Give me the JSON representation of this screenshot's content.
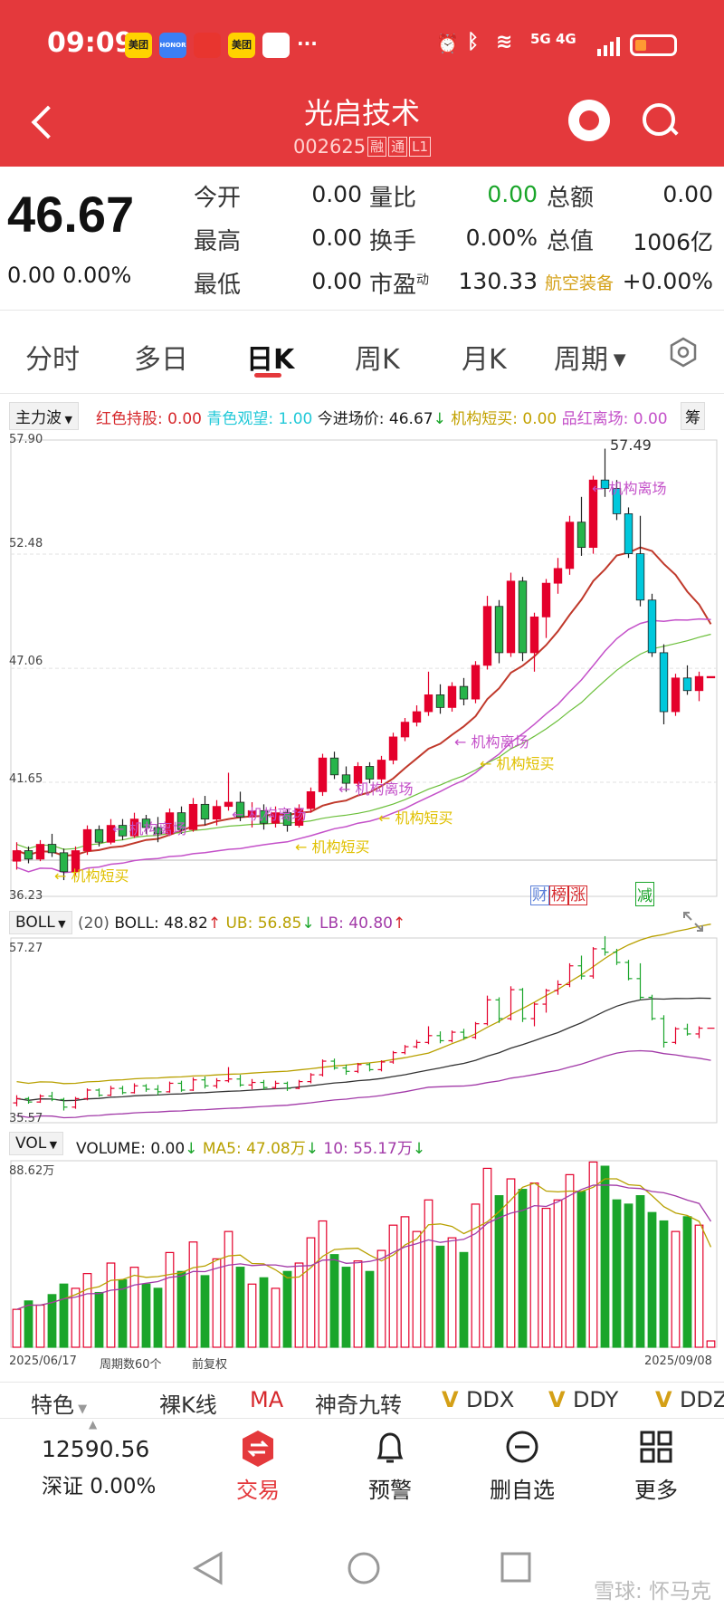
{
  "status_bar": {
    "time": "09:09",
    "apps": [
      "美团",
      "HONOR",
      "",
      "美团",
      ""
    ],
    "network": "5G 4G",
    "icons": [
      "alarm-icon",
      "bluetooth-icon",
      "wifi-icon",
      "signal-icon",
      "battery-icon"
    ]
  },
  "header": {
    "stock_name": "光启技术",
    "stock_code": "002625",
    "tags": [
      "融",
      "通",
      "L1"
    ]
  },
  "quote": {
    "price": "46.67",
    "change": "0.00",
    "change_pct": "0.00%",
    "rows": [
      {
        "l1": "今开",
        "v1": "0.00",
        "l2": "量比",
        "v2": "0.00",
        "l3": "总额",
        "v3": "0.00"
      },
      {
        "l1": "最高",
        "v1": "0.00",
        "l2": "换手",
        "v2": "0.00%",
        "l3": "总值",
        "v3": "1006亿"
      },
      {
        "l1": "最低",
        "v1": "0.00",
        "l2": "市盈",
        "l2sup": "动",
        "v2": "130.33",
        "l3": "航空装备",
        "v3": "+0.00%"
      }
    ]
  },
  "tabs": [
    "分时",
    "多日",
    "日K",
    "周K",
    "月K",
    "周期"
  ],
  "active_tab": "日K",
  "main_indicator": {
    "selector": "主力波",
    "items": [
      {
        "text": "红色持股: 0.00",
        "color": "#d6282c"
      },
      {
        "text": "青色观望: 1.00",
        "color": "#23c9d8"
      },
      {
        "text": "今进场价: 46.67",
        "color": "#1a1a1a"
      },
      {
        "text": "机构短买: 0.00",
        "color": "#c2a100"
      },
      {
        "text": "品红离场: 0.00",
        "color": "#c451c9"
      }
    ],
    "more_btn": "筹"
  },
  "price_axis": [
    "57.90",
    "52.48",
    "47.06",
    "41.65",
    "36.23"
  ],
  "chart_labels": {
    "high": "57.49",
    "exit_label": "机构离场",
    "buy_label": "机构短买",
    "events": [
      "财",
      "榜",
      "涨",
      "减"
    ]
  },
  "boll": {
    "selector": "BOLL",
    "param": "(20)",
    "items": [
      {
        "text": "BOLL: 48.82",
        "color": "#333333"
      },
      {
        "text": "UB: 56.85",
        "color": "#b8a000"
      },
      {
        "text": "LB: 40.80",
        "color": "#a23aa8"
      }
    ],
    "axis": [
      "57.27",
      "35.57"
    ]
  },
  "vol": {
    "selector": "VOL",
    "items": [
      {
        "text": "VOLUME: 0.00",
        "color": "#333333"
      },
      {
        "text": "MA5: 47.08万",
        "color": "#b8a000"
      },
      {
        "text": "10: 55.17万",
        "color": "#a23aa8"
      }
    ],
    "axis_top": "88.62万",
    "date_start": "2025/06/17",
    "period_count": "周期数60个",
    "adjust": "前复权",
    "date_end": "2025/09/08"
  },
  "feature_bar": {
    "items": [
      "特色",
      "裸K线",
      "MA",
      "神奇九转",
      "DDX",
      "DDY",
      "DDZ"
    ]
  },
  "bottom_nav": {
    "index_value": "12590.56",
    "index_name": "深证 0.00%",
    "items": [
      "交易",
      "预警",
      "删自选",
      "更多"
    ]
  },
  "watermark": "雪球: 怀马克",
  "colors": {
    "brand": "#e4393c",
    "up": "#e4002b",
    "down": "#1aa52a",
    "cyan": "#00c8dc"
  },
  "chart_data": {
    "type": "candlestick",
    "series_count": 60,
    "ohlc": [
      [
        37.9,
        38.8,
        37.5,
        38.4
      ],
      [
        38.4,
        38.6,
        37.8,
        38.0
      ],
      [
        38.0,
        38.9,
        37.9,
        38.7
      ],
      [
        38.7,
        39.2,
        38.1,
        38.3
      ],
      [
        38.3,
        38.5,
        37.0,
        37.4
      ],
      [
        37.4,
        38.6,
        37.2,
        38.4
      ],
      [
        38.4,
        39.6,
        38.2,
        39.4
      ],
      [
        39.4,
        39.6,
        38.6,
        38.8
      ],
      [
        38.8,
        39.9,
        38.7,
        39.6
      ],
      [
        39.6,
        39.9,
        38.9,
        39.1
      ],
      [
        39.1,
        40.2,
        39.0,
        39.9
      ],
      [
        39.9,
        40.1,
        39.2,
        39.5
      ],
      [
        39.5,
        40.0,
        38.8,
        39.2
      ],
      [
        39.2,
        40.4,
        39.1,
        40.2
      ],
      [
        40.2,
        40.5,
        39.2,
        39.4
      ],
      [
        39.4,
        40.9,
        39.3,
        40.6
      ],
      [
        40.6,
        41.0,
        39.6,
        39.9
      ],
      [
        39.9,
        40.8,
        39.6,
        40.5
      ],
      [
        40.5,
        42.1,
        40.3,
        40.7
      ],
      [
        40.7,
        41.2,
        39.8,
        40.0
      ],
      [
        40.0,
        40.7,
        39.5,
        40.3
      ],
      [
        40.3,
        40.6,
        39.4,
        39.7
      ],
      [
        39.7,
        40.5,
        39.5,
        40.2
      ],
      [
        40.2,
        40.4,
        39.3,
        39.6
      ],
      [
        39.6,
        40.6,
        39.5,
        40.4
      ],
      [
        40.4,
        41.4,
        40.2,
        41.2
      ],
      [
        41.2,
        43.0,
        41.0,
        42.8
      ],
      [
        42.8,
        43.1,
        41.8,
        42.0
      ],
      [
        42.0,
        42.4,
        41.2,
        41.6
      ],
      [
        41.6,
        42.6,
        41.4,
        42.4
      ],
      [
        42.4,
        42.6,
        41.6,
        41.8
      ],
      [
        41.8,
        42.9,
        41.6,
        42.7
      ],
      [
        42.7,
        44.0,
        42.5,
        43.8
      ],
      [
        43.8,
        44.7,
        43.6,
        44.5
      ],
      [
        44.5,
        45.3,
        44.3,
        45.0
      ],
      [
        45.0,
        46.9,
        44.8,
        45.8
      ],
      [
        45.8,
        46.3,
        44.9,
        45.2
      ],
      [
        45.2,
        46.4,
        45.0,
        46.2
      ],
      [
        46.2,
        46.6,
        45.3,
        45.6
      ],
      [
        45.6,
        47.4,
        45.4,
        47.2
      ],
      [
        47.2,
        50.5,
        47.0,
        50.0
      ],
      [
        50.0,
        50.3,
        47.3,
        47.8
      ],
      [
        47.8,
        51.6,
        47.6,
        51.2
      ],
      [
        51.2,
        51.4,
        47.4,
        47.8
      ],
      [
        47.8,
        49.7,
        46.9,
        49.5
      ],
      [
        49.5,
        51.3,
        48.5,
        51.1
      ],
      [
        51.1,
        52.3,
        50.6,
        51.8
      ],
      [
        51.8,
        54.3,
        51.5,
        54.0
      ],
      [
        54.0,
        55.2,
        52.4,
        52.8
      ],
      [
        52.8,
        56.2,
        52.5,
        56.0
      ],
      [
        56.0,
        57.49,
        55.2,
        55.6
      ],
      [
        55.6,
        56.0,
        54.1,
        54.4
      ],
      [
        54.4,
        54.7,
        52.3,
        52.5
      ],
      [
        52.5,
        54.3,
        50.0,
        50.3
      ],
      [
        50.3,
        50.6,
        47.6,
        47.8
      ],
      [
        47.8,
        48.2,
        44.4,
        45.0
      ],
      [
        45.0,
        46.8,
        44.8,
        46.6
      ],
      [
        46.6,
        47.2,
        45.8,
        46.0
      ],
      [
        46.0,
        46.9,
        45.5,
        46.67
      ],
      [
        46.67,
        46.67,
        46.67,
        46.67
      ]
    ],
    "volume": [
      18,
      22,
      20,
      25,
      30,
      28,
      35,
      26,
      40,
      32,
      38,
      30,
      28,
      45,
      36,
      50,
      34,
      42,
      55,
      38,
      30,
      33,
      28,
      36,
      40,
      52,
      60,
      44,
      38,
      41,
      36,
      46,
      58,
      62,
      55,
      70,
      48,
      52,
      45,
      68,
      85,
      72,
      80,
      75,
      78,
      66,
      70,
      82,
      74,
      88,
      86,
      70,
      68,
      72,
      64,
      60,
      55,
      62,
      58,
      3
    ],
    "y_range": [
      36.23,
      57.9
    ],
    "vol_max": 88.62
  }
}
